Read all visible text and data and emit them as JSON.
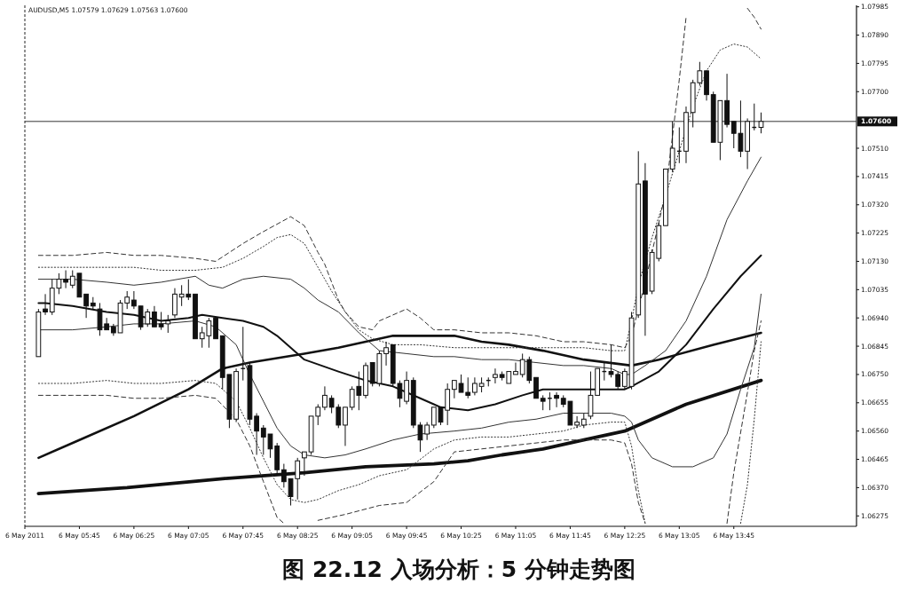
{
  "chart_data": {
    "type": "candlestick",
    "title": "图 22.12 入场分析：5 分钟走势图",
    "subtitle": "AUDUSD,M5 1.07579 1.07629 1.07563 1.07600",
    "color": "#111111",
    "x": [
      "2011-05-06T05:15",
      "2011-05-06T05:20",
      "2011-05-06T05:25",
      "2011-05-06T05:30",
      "2011-05-06T05:35",
      "2011-05-06T05:40",
      "2011-05-06T05:45",
      "2011-05-06T05:50",
      "2011-05-06T05:55",
      "2011-05-06T06:00",
      "2011-05-06T06:05",
      "2011-05-06T06:10",
      "2011-05-06T06:15",
      "2011-05-06T06:20",
      "2011-05-06T06:25",
      "2011-05-06T06:30",
      "2011-05-06T06:35",
      "2011-05-06T06:40",
      "2011-05-06T06:45",
      "2011-05-06T06:50",
      "2011-05-06T06:55",
      "2011-05-06T07:00",
      "2011-05-06T07:05",
      "2011-05-06T07:10",
      "2011-05-06T07:15",
      "2011-05-06T07:20",
      "2011-05-06T07:25",
      "2011-05-06T07:30",
      "2011-05-06T07:35",
      "2011-05-06T07:40",
      "2011-05-06T07:45",
      "2011-05-06T07:50",
      "2011-05-06T07:55",
      "2011-05-06T08:00",
      "2011-05-06T08:05",
      "2011-05-06T08:10",
      "2011-05-06T08:15",
      "2011-05-06T08:20",
      "2011-05-06T08:25",
      "2011-05-06T08:30",
      "2011-05-06T08:35",
      "2011-05-06T08:40",
      "2011-05-06T08:45",
      "2011-05-06T08:50",
      "2011-05-06T08:55",
      "2011-05-06T09:00",
      "2011-05-06T09:05",
      "2011-05-06T09:10",
      "2011-05-06T09:15",
      "2011-05-06T09:20",
      "2011-05-06T09:25",
      "2011-05-06T09:30",
      "2011-05-06T09:35",
      "2011-05-06T09:40",
      "2011-05-06T09:45",
      "2011-05-06T09:50",
      "2011-05-06T09:55",
      "2011-05-06T10:00",
      "2011-05-06T10:05",
      "2011-05-06T10:10",
      "2011-05-06T10:15",
      "2011-05-06T10:20",
      "2011-05-06T10:25",
      "2011-05-06T10:30",
      "2011-05-06T10:35",
      "2011-05-06T10:40",
      "2011-05-06T10:45",
      "2011-05-06T10:50",
      "2011-05-06T10:55",
      "2011-05-06T11:00",
      "2011-05-06T11:05",
      "2011-05-06T11:10",
      "2011-05-06T11:15",
      "2011-05-06T11:20",
      "2011-05-06T11:25",
      "2011-05-06T11:30",
      "2011-05-06T11:35",
      "2011-05-06T11:40",
      "2011-05-06T11:45",
      "2011-05-06T11:50",
      "2011-05-06T11:55",
      "2011-05-06T12:00",
      "2011-05-06T12:05",
      "2011-05-06T12:10",
      "2011-05-06T12:15",
      "2011-05-06T12:20",
      "2011-05-06T12:25",
      "2011-05-06T12:30",
      "2011-05-06T12:35",
      "2011-05-06T12:40",
      "2011-05-06T12:45",
      "2011-05-06T12:50",
      "2011-05-06T12:55",
      "2011-05-06T13:00",
      "2011-05-06T13:05",
      "2011-05-06T13:10",
      "2011-05-06T13:15",
      "2011-05-06T13:20",
      "2011-05-06T13:25",
      "2011-05-06T13:30",
      "2011-05-06T13:35",
      "2011-05-06T13:40",
      "2011-05-06T13:45",
      "2011-05-06T13:50",
      "2011-05-06T13:55",
      "2011-05-06T14:00",
      "2011-05-06T14:05"
    ],
    "ohlc": [
      [
        1.0681,
        1.0697,
        1.0681,
        1.0696
      ],
      [
        1.0697,
        1.0702,
        1.0695,
        1.0696
      ],
      [
        1.0696,
        1.0707,
        1.0695,
        1.0704
      ],
      [
        1.0704,
        1.0709,
        1.0702,
        1.0707
      ],
      [
        1.0707,
        1.071,
        1.0704,
        1.0706
      ],
      [
        1.0705,
        1.071,
        1.0704,
        1.0708
      ],
      [
        1.0709,
        1.0709,
        1.0701,
        1.0701
      ],
      [
        1.0702,
        1.0702,
        1.0694,
        1.0698
      ],
      [
        1.0699,
        1.0701,
        1.0697,
        1.0698
      ],
      [
        1.0697,
        1.0699,
        1.0688,
        1.069
      ],
      [
        1.0692,
        1.0694,
        1.069,
        1.069
      ],
      [
        1.0691,
        1.0692,
        1.0688,
        1.0689
      ],
      [
        1.0689,
        1.07,
        1.0689,
        1.0699
      ],
      [
        1.0699,
        1.0703,
        1.0697,
        1.0701
      ],
      [
        1.07,
        1.0703,
        1.0697,
        1.0698
      ],
      [
        1.0698,
        1.0698,
        1.069,
        1.0691
      ],
      [
        1.0692,
        1.0697,
        1.0691,
        1.0696
      ],
      [
        1.0696,
        1.0698,
        1.0691,
        1.0691
      ],
      [
        1.0692,
        1.0696,
        1.069,
        1.0691
      ],
      [
        1.0692,
        1.0695,
        1.0689,
        1.0693
      ],
      [
        1.0695,
        1.0704,
        1.0694,
        1.0702
      ],
      [
        1.0701,
        1.0705,
        1.0698,
        1.0702
      ],
      [
        1.0702,
        1.0707,
        1.07,
        1.0701
      ],
      [
        1.0702,
        1.0702,
        1.0687,
        1.0687
      ],
      [
        1.0687,
        1.0691,
        1.0684,
        1.0689
      ],
      [
        1.0688,
        1.0694,
        1.0684,
        1.0693
      ],
      [
        1.0694,
        1.0694,
        1.0687,
        1.0687
      ],
      [
        1.0688,
        1.0688,
        1.067,
        1.0674
      ],
      [
        1.0675,
        1.0675,
        1.0657,
        1.066
      ],
      [
        1.066,
        1.0677,
        1.0659,
        1.0676
      ],
      [
        1.0677,
        1.0691,
        1.0673,
        1.0677
      ],
      [
        1.0678,
        1.0679,
        1.0658,
        1.066
      ],
      [
        1.0661,
        1.0662,
        1.0648,
        1.0656
      ],
      [
        1.0657,
        1.0658,
        1.0648,
        1.0654
      ],
      [
        1.0655,
        1.0655,
        1.0647,
        1.065
      ],
      [
        1.0651,
        1.0652,
        1.0641,
        1.0643
      ],
      [
        1.0643,
        1.0645,
        1.0637,
        1.0639
      ],
      [
        1.064,
        1.064,
        1.0631,
        1.0634
      ],
      [
        1.064,
        1.0647,
        1.0633,
        1.0646
      ],
      [
        1.0647,
        1.0649,
        1.0641,
        1.0649
      ],
      [
        1.0649,
        1.0661,
        1.0648,
        1.0661
      ],
      [
        1.0661,
        1.0665,
        1.0658,
        1.0664
      ],
      [
        1.0664,
        1.0671,
        1.0663,
        1.0668
      ],
      [
        1.0667,
        1.0668,
        1.0662,
        1.0664
      ],
      [
        1.0664,
        1.0665,
        1.0657,
        1.0658
      ],
      [
        1.0658,
        1.0664,
        1.0651,
        1.0664
      ],
      [
        1.0664,
        1.0671,
        1.0663,
        1.067
      ],
      [
        1.0671,
        1.0676,
        1.0663,
        1.0668
      ],
      [
        1.0668,
        1.0679,
        1.0667,
        1.0678
      ],
      [
        1.0679,
        1.0679,
        1.0671,
        1.0672
      ],
      [
        1.0672,
        1.0683,
        1.0671,
        1.0682
      ],
      [
        1.0682,
        1.0686,
        1.0678,
        1.0684
      ],
      [
        1.0685,
        1.0685,
        1.0671,
        1.0672
      ],
      [
        1.0672,
        1.0673,
        1.0664,
        1.0667
      ],
      [
        1.0666,
        1.0676,
        1.0665,
        1.0673
      ],
      [
        1.0673,
        1.0674,
        1.0657,
        1.0658
      ],
      [
        1.0658,
        1.0659,
        1.0649,
        1.0653
      ],
      [
        1.0655,
        1.0659,
        1.0653,
        1.0658
      ],
      [
        1.0658,
        1.0664,
        1.0657,
        1.0664
      ],
      [
        1.0664,
        1.0664,
        1.0658,
        1.0659
      ],
      [
        1.0663,
        1.0672,
        1.0658,
        1.067
      ],
      [
        1.067,
        1.0673,
        1.0667,
        1.0673
      ],
      [
        1.0672,
        1.0675,
        1.0669,
        1.0669
      ],
      [
        1.0669,
        1.0674,
        1.0667,
        1.0668
      ],
      [
        1.0669,
        1.0674,
        1.0668,
        1.0672
      ],
      [
        1.0671,
        1.0674,
        1.0669,
        1.0672
      ],
      [
        1.0673,
        1.0674,
        1.0671,
        1.0673
      ],
      [
        1.0674,
        1.0677,
        1.0672,
        1.0675
      ],
      [
        1.0675,
        1.0676,
        1.0673,
        1.0674
      ],
      [
        1.0672,
        1.0676,
        1.0672,
        1.0676
      ],
      [
        1.0675,
        1.0679,
        1.0675,
        1.0676
      ],
      [
        1.0675,
        1.0682,
        1.0674,
        1.068
      ],
      [
        1.068,
        1.0681,
        1.0672,
        1.0673
      ],
      [
        1.0674,
        1.0674,
        1.0667,
        1.0667
      ],
      [
        1.0667,
        1.0668,
        1.0663,
        1.0666
      ],
      [
        1.0667,
        1.0669,
        1.0663,
        1.0667
      ],
      [
        1.0668,
        1.0669,
        1.0664,
        1.0667
      ],
      [
        1.0667,
        1.0668,
        1.0664,
        1.0665
      ],
      [
        1.0666,
        1.0666,
        1.0658,
        1.0658
      ],
      [
        1.0658,
        1.0661,
        1.0657,
        1.0659
      ],
      [
        1.0658,
        1.0662,
        1.0657,
        1.066
      ],
      [
        1.0661,
        1.0676,
        1.066,
        1.0668
      ],
      [
        1.0668,
        1.0677,
        1.0668,
        1.0677
      ],
      [
        1.0676,
        1.0679,
        1.0673,
        1.0676
      ],
      [
        1.0676,
        1.0685,
        1.0674,
        1.0675
      ],
      [
        1.0675,
        1.0676,
        1.067,
        1.0671
      ],
      [
        1.0671,
        1.0677,
        1.067,
        1.0676
      ],
      [
        1.0671,
        1.0696,
        1.067,
        1.0694
      ],
      [
        1.0695,
        1.075,
        1.0694,
        1.0739
      ],
      [
        1.074,
        1.0746,
        1.0688,
        1.0702
      ],
      [
        1.0703,
        1.0717,
        1.0702,
        1.0716
      ],
      [
        1.0714,
        1.0726,
        1.0713,
        1.0725
      ],
      [
        1.0725,
        1.0744,
        1.0725,
        1.0744
      ],
      [
        1.0744,
        1.076,
        1.0743,
        1.0751
      ],
      [
        1.075,
        1.0758,
        1.0746,
        1.075
      ],
      [
        1.075,
        1.0765,
        1.0746,
        1.0763
      ],
      [
        1.0763,
        1.0774,
        1.0758,
        1.0773
      ],
      [
        1.0773,
        1.078,
        1.0772,
        1.0777
      ],
      [
        1.0777,
        1.0777,
        1.0767,
        1.0769
      ],
      [
        1.0769,
        1.077,
        1.0753,
        1.0753
      ],
      [
        1.0753,
        1.0767,
        1.0747,
        1.0767
      ],
      [
        1.0767,
        1.0776,
        1.0758,
        1.0759
      ],
      [
        1.076,
        1.076,
        1.0751,
        1.0756
      ],
      [
        1.0756,
        1.0767,
        1.0748,
        1.075
      ],
      [
        1.075,
        1.0761,
        1.0744,
        1.076
      ],
      [
        1.0758,
        1.0766,
        1.0757,
        1.0758
      ],
      [
        1.0758,
        1.0763,
        1.0756,
        1.076
      ]
    ],
    "series": [
      {
        "type": "line",
        "color": "#111111",
        "x": [
          "2011-05-06T05:15",
          "2011-05-06T05:20",
          "2011-05-06T05:40",
          "2011-05-06T06:05",
          "2011-05-06T06:25",
          "2011-05-06T06:45",
          "2011-05-06T07:05",
          "2011-05-06T07:15",
          "2011-05-06T07:30",
          "2011-05-06T07:45",
          "2011-05-06T08:00",
          "2011-05-06T08:10",
          "2011-05-06T08:20",
          "2011-05-06T08:30",
          "2011-05-06T08:55",
          "2011-05-06T09:15",
          "2011-05-06T09:35",
          "2011-05-06T09:55",
          "2011-05-06T10:05",
          "2011-05-06T10:10",
          "2011-05-06T10:30",
          "2011-05-06T10:50",
          "2011-05-06T11:10",
          "2011-05-06T11:25",
          "2011-05-06T11:55",
          "2011-05-06T12:25",
          "2011-05-06T12:30",
          "2011-05-06T12:50",
          "2011-05-06T13:10",
          "2011-05-06T13:30",
          "2011-05-06T13:50",
          "2011-05-06T14:05"
        ],
        "values": [
          1.0699,
          1.0699,
          1.0698,
          1.0696,
          1.0695,
          1.0693,
          1.0694,
          1.0695,
          1.0694,
          1.0693,
          1.0691,
          1.0688,
          1.0684,
          1.068,
          1.0676,
          1.0673,
          1.0671,
          1.0667,
          1.0665,
          1.0664,
          1.0663,
          1.0665,
          1.0668,
          1.067,
          1.067,
          1.067,
          1.0671,
          1.0676,
          1.0685,
          1.0697,
          1.0708,
          1.0715
        ]
      },
      {
        "type": "line",
        "color": "#111111",
        "x": [
          "2011-05-06T05:15",
          "2011-05-06T05:45",
          "2011-05-06T06:25",
          "2011-05-06T07:05",
          "2011-05-06T07:30",
          "2011-05-06T07:50",
          "2011-05-06T08:30",
          "2011-05-06T08:55",
          "2011-05-06T09:35",
          "2011-05-06T10:05",
          "2011-05-06T10:20",
          "2011-05-06T10:40",
          "2011-05-06T11:00",
          "2011-05-06T11:25",
          "2011-05-06T11:55",
          "2011-05-06T12:30",
          "2011-05-06T12:50",
          "2011-05-06T13:30",
          "2011-05-06T14:05"
        ],
        "values": [
          1.0647,
          1.0653,
          1.0661,
          1.067,
          1.0677,
          1.0679,
          1.0682,
          1.0684,
          1.0688,
          1.0688,
          1.0688,
          1.0686,
          1.0685,
          1.0683,
          1.068,
          1.0678,
          1.068,
          1.0685,
          1.0689
        ]
      },
      {
        "type": "line",
        "color": "#111111",
        "x": [
          "2011-05-06T05:15",
          "2011-05-06T06:20",
          "2011-05-06T07:30",
          "2011-05-06T08:30",
          "2011-05-06T09:15",
          "2011-05-06T10:05",
          "2011-05-06T10:30",
          "2011-05-06T10:55",
          "2011-05-06T11:25",
          "2011-05-06T11:55",
          "2011-05-06T12:25",
          "2011-05-06T13:10",
          "2011-05-06T14:05"
        ],
        "values": [
          1.0635,
          1.0637,
          1.064,
          1.0642,
          1.0644,
          1.0645,
          1.0646,
          1.0648,
          1.065,
          1.0653,
          1.0656,
          1.0665,
          1.0673
        ]
      },
      {
        "type": "line",
        "color": "#333333",
        "line_style": "dashed",
        "x": [
          "2011-05-06T05:15",
          "2011-05-06T05:40",
          "2011-05-06T06:05",
          "2011-05-06T06:25",
          "2011-05-06T06:45",
          "2011-05-06T07:10",
          "2011-05-06T07:25",
          "2011-05-06T07:45",
          "2011-05-06T08:00",
          "2011-05-06T08:20",
          "2011-05-06T08:30",
          "2011-05-06T08:40",
          "2011-05-06T08:45",
          "2011-05-06T08:55",
          "2011-05-06T09:00",
          "2011-05-06T09:10",
          "2011-05-06T09:20",
          "2011-05-06T09:25",
          "2011-05-06T09:45",
          "2011-05-06T09:55",
          "2011-05-06T10:05",
          "2011-05-06T10:20",
          "2011-05-06T10:40",
          "2011-05-06T11:00",
          "2011-05-06T11:20",
          "2011-05-06T11:40",
          "2011-05-06T11:55",
          "2011-05-06T12:15",
          "2011-05-06T12:25",
          "2011-05-06T12:30",
          "2011-05-06T12:40",
          "2011-05-06T12:55",
          "2011-05-06T13:05",
          "2011-05-06T13:10"
        ],
        "values": [
          1.0715,
          1.0715,
          1.0716,
          1.0715,
          1.0715,
          1.0714,
          1.0713,
          1.0719,
          1.0723,
          1.0728,
          1.0725,
          1.0716,
          1.0712,
          1.07,
          1.0696,
          1.0691,
          1.069,
          1.0693,
          1.0697,
          1.0694,
          1.069,
          1.069,
          1.0689,
          1.0689,
          1.0688,
          1.0686,
          1.0686,
          1.0685,
          1.0684,
          1.0688,
          1.0706,
          1.0736,
          1.0774,
          1.0795
        ]
      },
      {
        "type": "line",
        "color": "#333333",
        "line_style": "dashed",
        "x": [
          "2011-05-06T13:55",
          "2011-05-06T14:00",
          "2011-05-06T14:05"
        ],
        "values": [
          1.0798,
          1.0795,
          1.0791
        ]
      },
      {
        "type": "line",
        "color": "#333333",
        "line_style": "dotted",
        "x": [
          "2011-05-06T05:15",
          "2011-05-06T05:40",
          "2011-05-06T06:05",
          "2011-05-06T06:25",
          "2011-05-06T06:45",
          "2011-05-06T07:10",
          "2011-05-06T07:30",
          "2011-05-06T07:45",
          "2011-05-06T08:00",
          "2011-05-06T08:10",
          "2011-05-06T08:20",
          "2011-05-06T08:30",
          "2011-05-06T08:40",
          "2011-05-06T08:50",
          "2011-05-06T09:00",
          "2011-05-06T09:10",
          "2011-05-06T09:20",
          "2011-05-06T09:35",
          "2011-05-06T09:55",
          "2011-05-06T10:20",
          "2011-05-06T10:40",
          "2011-05-06T11:00",
          "2011-05-06T11:20",
          "2011-05-06T11:40",
          "2011-05-06T11:55",
          "2011-05-06T12:15",
          "2011-05-06T12:25",
          "2011-05-06T12:30",
          "2011-05-06T12:35",
          "2011-05-06T12:45",
          "2011-05-06T12:55",
          "2011-05-06T13:05",
          "2011-05-06T13:15",
          "2011-05-06T13:25",
          "2011-05-06T13:35",
          "2011-05-06T13:45",
          "2011-05-06T13:55",
          "2011-05-06T14:05"
        ],
        "values": [
          1.0711,
          1.0711,
          1.0711,
          1.0711,
          1.071,
          1.071,
          1.0711,
          1.0714,
          1.0718,
          1.0721,
          1.0722,
          1.0719,
          1.0711,
          1.0703,
          1.0696,
          1.069,
          1.0687,
          1.0685,
          1.0685,
          1.0684,
          1.0684,
          1.0684,
          1.0684,
          1.0684,
          1.0684,
          1.0683,
          1.0683,
          1.0693,
          1.0705,
          1.0721,
          1.0735,
          1.075,
          1.0765,
          1.0777,
          1.0784,
          1.0786,
          1.0785,
          1.0781
        ]
      },
      {
        "type": "line",
        "color": "#333333",
        "x": [
          "2011-05-06T05:15",
          "2011-05-06T05:40",
          "2011-05-06T06:05",
          "2011-05-06T06:25",
          "2011-05-06T06:45",
          "2011-05-06T07:10",
          "2011-05-06T07:20",
          "2011-05-06T07:30",
          "2011-05-06T07:45",
          "2011-05-06T08:00",
          "2011-05-06T08:20",
          "2011-05-06T08:30",
          "2011-05-06T08:40",
          "2011-05-06T08:55",
          "2011-05-06T09:10",
          "2011-05-06T09:25",
          "2011-05-06T09:45",
          "2011-05-06T10:05",
          "2011-05-06T10:20",
          "2011-05-06T10:40",
          "2011-05-06T11:00",
          "2011-05-06T11:20",
          "2011-05-06T11:40",
          "2011-05-06T11:55",
          "2011-05-06T12:15",
          "2011-05-06T12:25",
          "2011-05-06T12:30",
          "2011-05-06T12:40",
          "2011-05-06T12:55",
          "2011-05-06T13:10",
          "2011-05-06T13:25",
          "2011-05-06T13:40",
          "2011-05-06T13:55",
          "2011-05-06T14:05"
        ],
        "values": [
          1.0707,
          1.0707,
          1.0706,
          1.0705,
          1.0706,
          1.0708,
          1.0705,
          1.0704,
          1.0707,
          1.0708,
          1.0707,
          1.0704,
          1.07,
          1.0696,
          1.0689,
          1.0683,
          1.0682,
          1.0681,
          1.0681,
          1.068,
          1.068,
          1.0679,
          1.0678,
          1.0678,
          1.0677,
          1.0675,
          1.0675,
          1.0678,
          1.0683,
          1.0693,
          1.0708,
          1.0727,
          1.074,
          1.0748
        ]
      },
      {
        "type": "line",
        "color": "#333333",
        "x": [
          "2011-05-06T05:15",
          "2011-05-06T05:40",
          "2011-05-06T06:05",
          "2011-05-06T06:25",
          "2011-05-06T06:45",
          "2011-05-06T07:10",
          "2011-05-06T07:25",
          "2011-05-06T07:40",
          "2011-05-06T07:50",
          "2011-05-06T08:00",
          "2011-05-06T08:10",
          "2011-05-06T08:20",
          "2011-05-06T08:30",
          "2011-05-06T08:45",
          "2011-05-06T09:00",
          "2011-05-06T09:15",
          "2011-05-06T09:35",
          "2011-05-06T09:55",
          "2011-05-06T10:20",
          "2011-05-06T10:40",
          "2011-05-06T11:00",
          "2011-05-06T11:20",
          "2011-05-06T11:40",
          "2011-05-06T11:55",
          "2011-05-06T12:15",
          "2011-05-06T12:25",
          "2011-05-06T12:30",
          "2011-05-06T12:35",
          "2011-05-06T12:45",
          "2011-05-06T13:00",
          "2011-05-06T13:15",
          "2011-05-06T13:30",
          "2011-05-06T13:40",
          "2011-05-06T13:50",
          "2011-05-06T14:00",
          "2011-05-06T14:05"
        ],
        "values": [
          1.069,
          1.069,
          1.0691,
          1.0692,
          1.0692,
          1.0693,
          1.0691,
          1.0685,
          1.0675,
          1.0666,
          1.0657,
          1.0651,
          1.0648,
          1.0647,
          1.0648,
          1.065,
          1.0653,
          1.0655,
          1.0656,
          1.0657,
          1.0659,
          1.066,
          1.0662,
          1.0662,
          1.0662,
          1.0661,
          1.0659,
          1.0653,
          1.0647,
          1.0644,
          1.0644,
          1.0647,
          1.0655,
          1.067,
          1.0684,
          1.0702
        ]
      },
      {
        "type": "line",
        "color": "#333333",
        "line_style": "dotted",
        "x": [
          "2011-05-06T05:15",
          "2011-05-06T05:40",
          "2011-05-06T06:05",
          "2011-05-06T06:25",
          "2011-05-06T06:45",
          "2011-05-06T07:10",
          "2011-05-06T07:25",
          "2011-05-06T07:40",
          "2011-05-06T07:50",
          "2011-05-06T08:00",
          "2011-05-06T08:10",
          "2011-05-06T08:20",
          "2011-05-06T08:30",
          "2011-05-06T08:40",
          "2011-05-06T08:55",
          "2011-05-06T09:10",
          "2011-05-06T09:25",
          "2011-05-06T09:45",
          "2011-05-06T10:05",
          "2011-05-06T10:20",
          "2011-05-06T10:40",
          "2011-05-06T11:00",
          "2011-05-06T11:20",
          "2011-05-06T11:40",
          "2011-05-06T11:55",
          "2011-05-06T12:15",
          "2011-05-06T12:25",
          "2011-05-06T12:30",
          "2011-05-06T12:35",
          "2011-05-06T12:40"
        ],
        "values": [
          1.0672,
          1.0672,
          1.0673,
          1.0672,
          1.0672,
          1.0673,
          1.0672,
          1.0666,
          1.0657,
          1.0647,
          1.0638,
          1.0633,
          1.0632,
          1.0633,
          1.0636,
          1.0638,
          1.0641,
          1.0643,
          1.065,
          1.0653,
          1.0654,
          1.0654,
          1.0655,
          1.0656,
          1.0658,
          1.0659,
          1.0659,
          1.0651,
          1.0636,
          1.0625
        ]
      },
      {
        "type": "line",
        "color": "#333333",
        "line_style": "dotted",
        "x": [
          "2011-05-06T13:50",
          "2011-05-06T13:55",
          "2011-05-06T14:00",
          "2011-05-06T14:05"
        ],
        "values": [
          1.0625,
          1.0638,
          1.066,
          1.0686
        ]
      },
      {
        "type": "line",
        "color": "#333333",
        "line_style": "dashed",
        "x": [
          "2011-05-06T05:15",
          "2011-05-06T05:40",
          "2011-05-06T06:05",
          "2011-05-06T06:25",
          "2011-05-06T06:45",
          "2011-05-06T07:10",
          "2011-05-06T07:25",
          "2011-05-06T07:40",
          "2011-05-06T07:50",
          "2011-05-06T08:00",
          "2011-05-06T08:10",
          "2011-05-06T08:15"
        ],
        "values": [
          1.0668,
          1.0668,
          1.0668,
          1.0667,
          1.0667,
          1.0668,
          1.0667,
          1.066,
          1.0651,
          1.0639,
          1.0627,
          1.0625
        ]
      },
      {
        "type": "line",
        "color": "#333333",
        "line_style": "dashed",
        "x": [
          "2011-05-06T08:40",
          "2011-05-06T09:00",
          "2011-05-06T09:25",
          "2011-05-06T09:45",
          "2011-05-06T10:05",
          "2011-05-06T10:20",
          "2011-05-06T10:40",
          "2011-05-06T11:00",
          "2011-05-06T11:20",
          "2011-05-06T11:40",
          "2011-05-06T11:55",
          "2011-05-06T12:15",
          "2011-05-06T12:25",
          "2011-05-06T12:30",
          "2011-05-06T12:35",
          "2011-05-06T12:40"
        ],
        "values": [
          1.0626,
          1.0628,
          1.0631,
          1.0632,
          1.0639,
          1.0649,
          1.065,
          1.0651,
          1.0652,
          1.0653,
          1.0653,
          1.0653,
          1.0652,
          1.0645,
          1.0632,
          1.0625
        ]
      },
      {
        "type": "line",
        "color": "#333333",
        "line_style": "dashed",
        "x": [
          "2011-05-06T13:40",
          "2011-05-06T13:45",
          "2011-05-06T13:55",
          "2011-05-06T14:00",
          "2011-05-06T14:05"
        ],
        "values": [
          1.0625,
          1.0642,
          1.0669,
          1.0683,
          1.0693
        ]
      }
    ],
    "xlim": [
      "2011-05-06T05:05",
      "2011-05-06T15:15"
    ],
    "ylim": [
      1.0624,
      1.0799
    ],
    "xticks": [
      {
        "value": "2011-05-06T05:05",
        "label": "6 May 2011"
      },
      {
        "value": "2011-05-06T05:45",
        "label": "6 May 05:45"
      },
      {
        "value": "2011-05-06T06:25",
        "label": "6 May 06:25"
      },
      {
        "value": "2011-05-06T07:05",
        "label": "6 May 07:05"
      },
      {
        "value": "2011-05-06T07:45",
        "label": "6 May 07:45"
      },
      {
        "value": "2011-05-06T08:25",
        "label": "6 May 08:25"
      },
      {
        "value": "2011-05-06T09:05",
        "label": "6 May 09:05"
      },
      {
        "value": "2011-05-06T09:45",
        "label": "6 May 09:45"
      },
      {
        "value": "2011-05-06T10:25",
        "label": "6 May 10:25"
      },
      {
        "value": "2011-05-06T11:05",
        "label": "6 May 11:05"
      },
      {
        "value": "2011-05-06T11:45",
        "label": "6 May 11:45"
      },
      {
        "value": "2011-05-06T12:25",
        "label": "6 May 12:25"
      },
      {
        "value": "2011-05-06T13:05",
        "label": "6 May 13:05"
      },
      {
        "value": "2011-05-06T13:45",
        "label": "6 May 13:45"
      }
    ],
    "yticks": [
      1.06275,
      {
        "value": 1.0637,
        "label": "1.06370"
      },
      1.06465,
      {
        "value": 1.0656,
        "label": "1.06560"
      },
      1.06655,
      {
        "value": 1.0675,
        "label": "1.06750"
      },
      1.06845,
      {
        "value": 1.0694,
        "label": "1.06940"
      },
      1.07035,
      {
        "value": 1.0713,
        "label": "1.07130"
      },
      1.07225,
      {
        "value": 1.0732,
        "label": "1.07320"
      },
      1.07415,
      {
        "value": 1.0751,
        "label": "1.07510"
      },
      {
        "value": 1.077,
        "label": "1.07700"
      },
      1.07795,
      {
        "value": 1.0789,
        "label": "1.07890"
      },
      1.07985
    ],
    "ref_lines": [
      {
        "axis": "y",
        "value": 1.076,
        "label": "1.07600"
      }
    ]
  }
}
